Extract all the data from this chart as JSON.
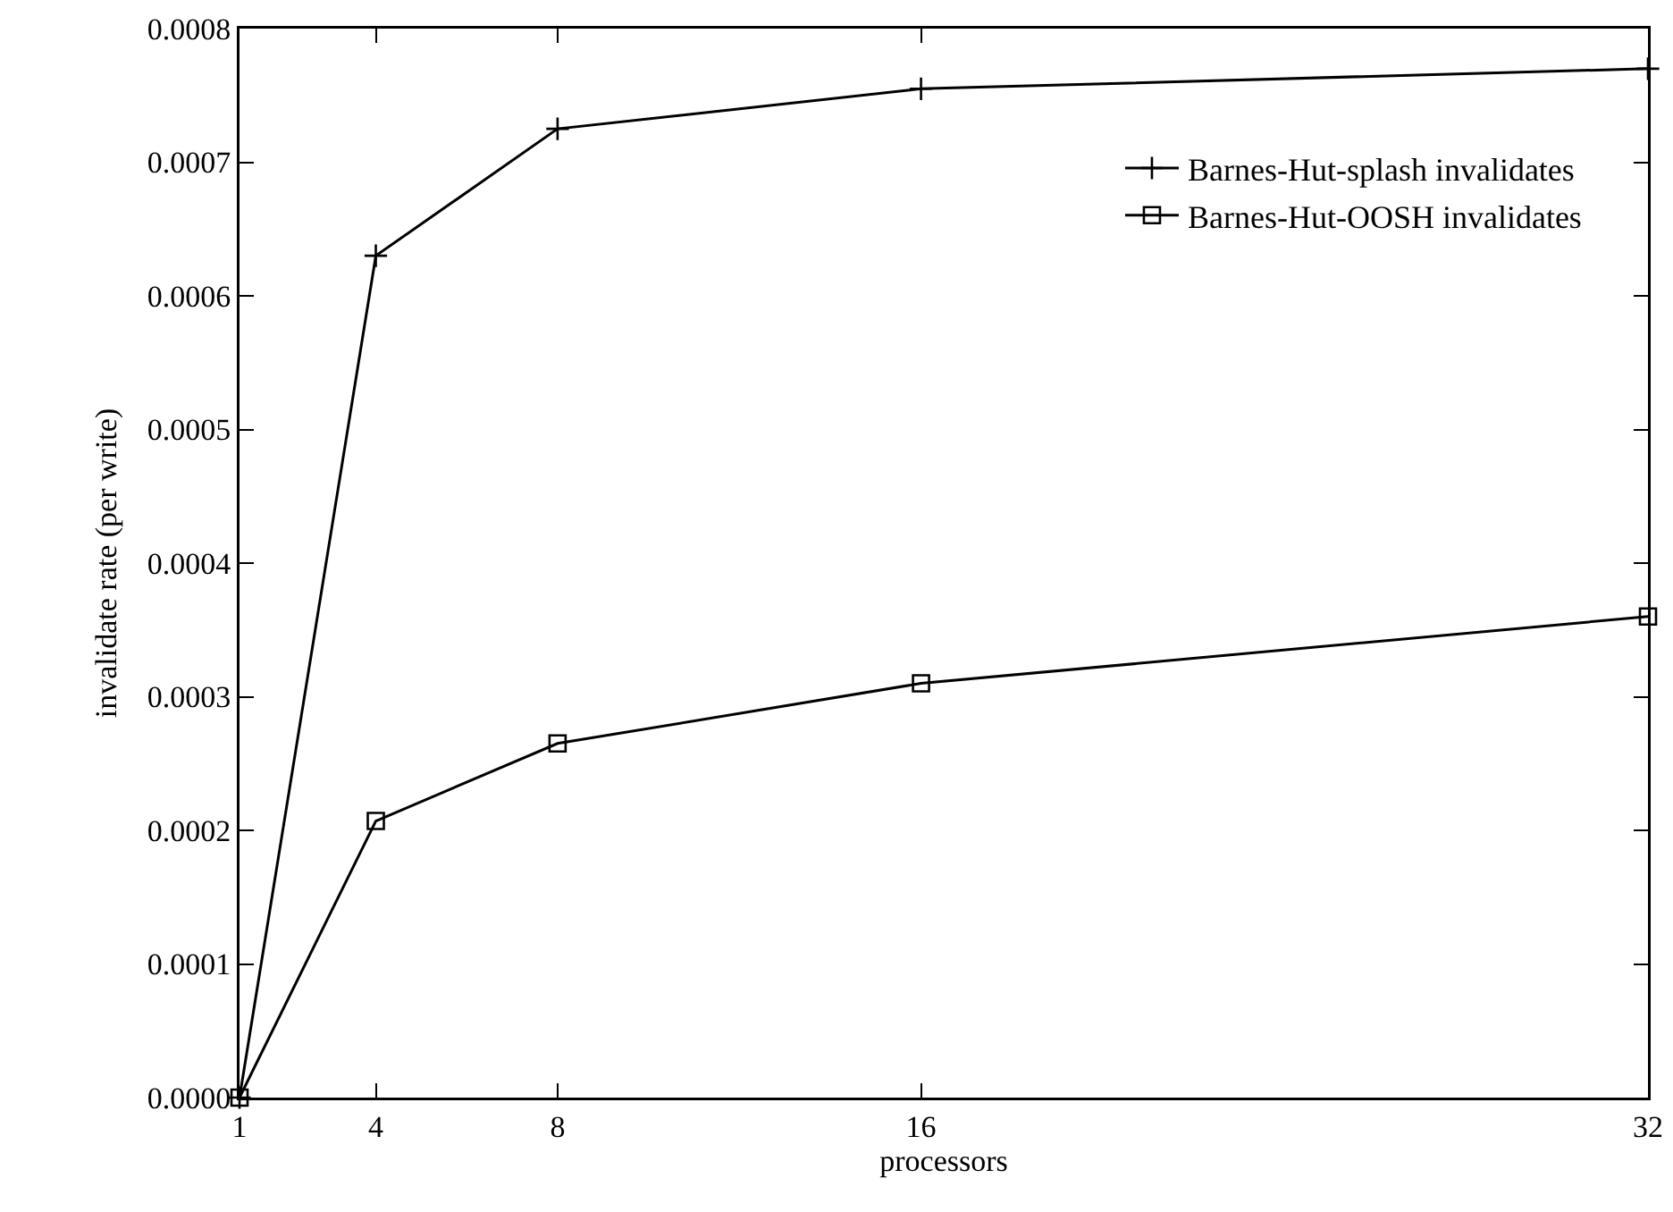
{
  "chart_data": {
    "type": "line",
    "xlabel": "processors",
    "ylabel": "invalidate rate (per write)",
    "x": [
      1,
      4,
      8,
      16,
      32
    ],
    "series": [
      {
        "name": "Barnes-Hut-splash invalidates",
        "color": "#000000",
        "marker": "cross",
        "values": [
          0,
          0.00063,
          0.000725,
          0.000755,
          0.00077
        ]
      },
      {
        "name": "Barnes-Hut-OOSH invalidates",
        "color": "#000000",
        "marker": "square",
        "values": [
          0,
          0.000207,
          0.000265,
          0.00031,
          0.00036
        ]
      }
    ],
    "xlim": [
      1,
      32
    ],
    "xticks": [
      1,
      4,
      8,
      16,
      32
    ],
    "ylim": [
      0,
      0.0008
    ],
    "yticks": [
      {
        "value": 0,
        "label": "0.0000"
      },
      {
        "value": 0.0001,
        "label": "0.0001"
      },
      {
        "value": 0.0002,
        "label": "0.0002"
      },
      {
        "value": 0.0003,
        "label": "0.0003"
      },
      {
        "value": 0.0004,
        "label": "0.0004"
      },
      {
        "value": 0.0005,
        "label": "0.0005"
      },
      {
        "value": 0.0006,
        "label": "0.0006"
      },
      {
        "value": 0.0007,
        "label": "0.0007"
      },
      {
        "value": 0.0008,
        "label": "0.0008"
      }
    ],
    "grid": false,
    "legend": "top right",
    "line_style": "solid"
  }
}
